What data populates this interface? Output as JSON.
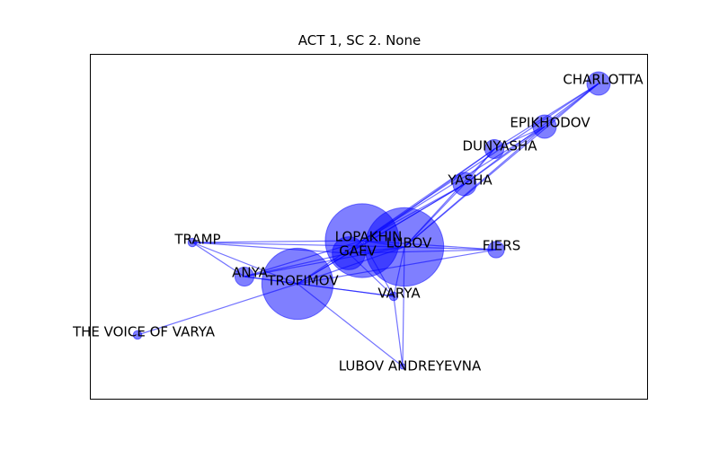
{
  "title": "ACT 1, SC 2. None",
  "colors": {
    "node": "#0000ff",
    "edge": "#0000ff",
    "frame": "#000000"
  },
  "nodes": [
    {
      "id": "CHARLOTTA",
      "label": "CHARLOTTA",
      "weight": 3
    },
    {
      "id": "EPIKHODOV",
      "label": "EPIKHODOV",
      "weight": 3
    },
    {
      "id": "DUNYASHA",
      "label": "DUNYASHA",
      "weight": 2
    },
    {
      "id": "YASHA",
      "label": "YASHA",
      "weight": 3
    },
    {
      "id": "LOPAKHIN",
      "label": "LOPAKHIN",
      "weight": 30
    },
    {
      "id": "GAEV",
      "label": "GAEV",
      "weight": 6
    },
    {
      "id": "LUBOV",
      "label": "LUBOV",
      "weight": 34
    },
    {
      "id": "FIERS",
      "label": "FIERS",
      "weight": 1.5
    },
    {
      "id": "TRAMP",
      "label": "TRAMP",
      "weight": 0.4
    },
    {
      "id": "ANYA",
      "label": "ANYA",
      "weight": 2
    },
    {
      "id": "TROFIMOV",
      "label": "TROFIMOV",
      "weight": 28
    },
    {
      "id": "VARYA",
      "label": "VARYA",
      "weight": 0.4
    },
    {
      "id": "VOICE_OF_VARYA",
      "label": "THE VOICE OF VARYA",
      "weight": 0.4
    },
    {
      "id": "LUBOV_ANDREYEVNA",
      "label": "LUBOV ANDREYEVNA",
      "weight": 0.1
    }
  ],
  "edges": [
    [
      "CHARLOTTA",
      "EPIKHODOV"
    ],
    [
      "CHARLOTTA",
      "DUNYASHA"
    ],
    [
      "CHARLOTTA",
      "YASHA"
    ],
    [
      "CHARLOTTA",
      "LOPAKHIN"
    ],
    [
      "CHARLOTTA",
      "LUBOV"
    ],
    [
      "EPIKHODOV",
      "DUNYASHA"
    ],
    [
      "EPIKHODOV",
      "YASHA"
    ],
    [
      "EPIKHODOV",
      "LOPAKHIN"
    ],
    [
      "EPIKHODOV",
      "LUBOV"
    ],
    [
      "DUNYASHA",
      "YASHA"
    ],
    [
      "DUNYASHA",
      "LOPAKHIN"
    ],
    [
      "DUNYASHA",
      "LUBOV"
    ],
    [
      "DUNYASHA",
      "GAEV"
    ],
    [
      "YASHA",
      "LOPAKHIN"
    ],
    [
      "YASHA",
      "LUBOV"
    ],
    [
      "YASHA",
      "GAEV"
    ],
    [
      "YASHA",
      "TROFIMOV"
    ],
    [
      "LOPAKHIN",
      "LUBOV"
    ],
    [
      "LOPAKHIN",
      "GAEV"
    ],
    [
      "LOPAKHIN",
      "TROFIMOV"
    ],
    [
      "LOPAKHIN",
      "TRAMP"
    ],
    [
      "LOPAKHIN",
      "ANYA"
    ],
    [
      "LOPAKHIN",
      "VARYA"
    ],
    [
      "LOPAKHIN",
      "FIERS"
    ],
    [
      "LUBOV",
      "GAEV"
    ],
    [
      "LUBOV",
      "TROFIMOV"
    ],
    [
      "LUBOV",
      "TRAMP"
    ],
    [
      "LUBOV",
      "ANYA"
    ],
    [
      "LUBOV",
      "VARYA"
    ],
    [
      "LUBOV",
      "FIERS"
    ],
    [
      "LUBOV",
      "LUBOV_ANDREYEVNA"
    ],
    [
      "GAEV",
      "TROFIMOV"
    ],
    [
      "GAEV",
      "TRAMP"
    ],
    [
      "GAEV",
      "ANYA"
    ],
    [
      "GAEV",
      "VARYA"
    ],
    [
      "GAEV",
      "FIERS"
    ],
    [
      "TROFIMOV",
      "TRAMP"
    ],
    [
      "TROFIMOV",
      "ANYA"
    ],
    [
      "TROFIMOV",
      "VARYA"
    ],
    [
      "TROFIMOV",
      "VOICE_OF_VARYA"
    ],
    [
      "TROFIMOV",
      "LUBOV_ANDREYEVNA"
    ],
    [
      "TROFIMOV",
      "FIERS"
    ],
    [
      "ANYA",
      "TRAMP"
    ],
    [
      "ANYA",
      "VARYA"
    ],
    [
      "VARYA",
      "LUBOV_ANDREYEVNA"
    ]
  ]
}
